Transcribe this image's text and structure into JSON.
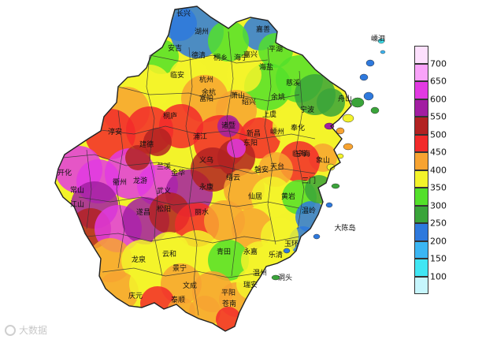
{
  "legend": {
    "ticks": [
      "700",
      "650",
      "600",
      "550",
      "500",
      "450",
      "400",
      "350",
      "300",
      "250",
      "200",
      "150",
      "100"
    ],
    "colors": [
      "#fde0fd",
      "#f9a3f9",
      "#e23ae2",
      "#a21ea2",
      "#b22222",
      "#f22a2a",
      "#f7a331",
      "#f3f32a",
      "#53e02a",
      "#3aa43a",
      "#2e79dd",
      "#3bb6f3",
      "#40e6f3",
      "#c6f6fd"
    ]
  },
  "cities": [
    {
      "name": "长兴"
    },
    {
      "name": "湖州"
    },
    {
      "name": "嘉善"
    },
    {
      "name": "平湖"
    },
    {
      "name": "嘉兴"
    },
    {
      "name": "安吉"
    },
    {
      "name": "德清"
    },
    {
      "name": "桐乡"
    },
    {
      "name": "海宁"
    },
    {
      "name": "海盐"
    },
    {
      "name": "临安"
    },
    {
      "name": "杭州"
    },
    {
      "name": "余杭"
    },
    {
      "name": "萧山"
    },
    {
      "name": "上虞"
    },
    {
      "name": "慈溪"
    },
    {
      "name": "余姚"
    },
    {
      "name": "宁波"
    },
    {
      "name": "舟山"
    },
    {
      "name": "嵊泗"
    },
    {
      "name": "淳安"
    },
    {
      "name": "建德"
    },
    {
      "name": "桐庐"
    },
    {
      "name": "富阳"
    },
    {
      "name": "诸暨"
    },
    {
      "name": "绍兴"
    },
    {
      "name": "嵊州"
    },
    {
      "name": "新昌"
    },
    {
      "name": "奉化"
    },
    {
      "name": "象山"
    },
    {
      "name": "宁海"
    },
    {
      "name": "三门"
    },
    {
      "name": "开化"
    },
    {
      "name": "常山"
    },
    {
      "name": "衢州"
    },
    {
      "name": "江山"
    },
    {
      "name": "龙游"
    },
    {
      "name": "兰溪"
    },
    {
      "name": "金华"
    },
    {
      "name": "义乌"
    },
    {
      "name": "东阳"
    },
    {
      "name": "浦江"
    },
    {
      "name": "磐安"
    },
    {
      "name": "天台"
    },
    {
      "name": "临海"
    },
    {
      "name": "武义"
    },
    {
      "name": "永康"
    },
    {
      "name": "缙云"
    },
    {
      "name": "仙居"
    },
    {
      "name": "黄岩"
    },
    {
      "name": "温岭"
    },
    {
      "name": "玉环"
    },
    {
      "name": "遂昌"
    },
    {
      "name": "松阳"
    },
    {
      "name": "丽水"
    },
    {
      "name": "青田"
    },
    {
      "name": "永嘉"
    },
    {
      "name": "乐清"
    },
    {
      "name": "温州"
    },
    {
      "name": "瑞安"
    },
    {
      "name": "龙泉"
    },
    {
      "name": "云和"
    },
    {
      "name": "景宁"
    },
    {
      "name": "庆元"
    },
    {
      "name": "文成"
    },
    {
      "name": "泰顺"
    },
    {
      "name": "平阳"
    },
    {
      "name": "苍南"
    },
    {
      "name": "洞头"
    },
    {
      "name": "大陈岛"
    }
  ],
  "watermark": "大数据"
}
